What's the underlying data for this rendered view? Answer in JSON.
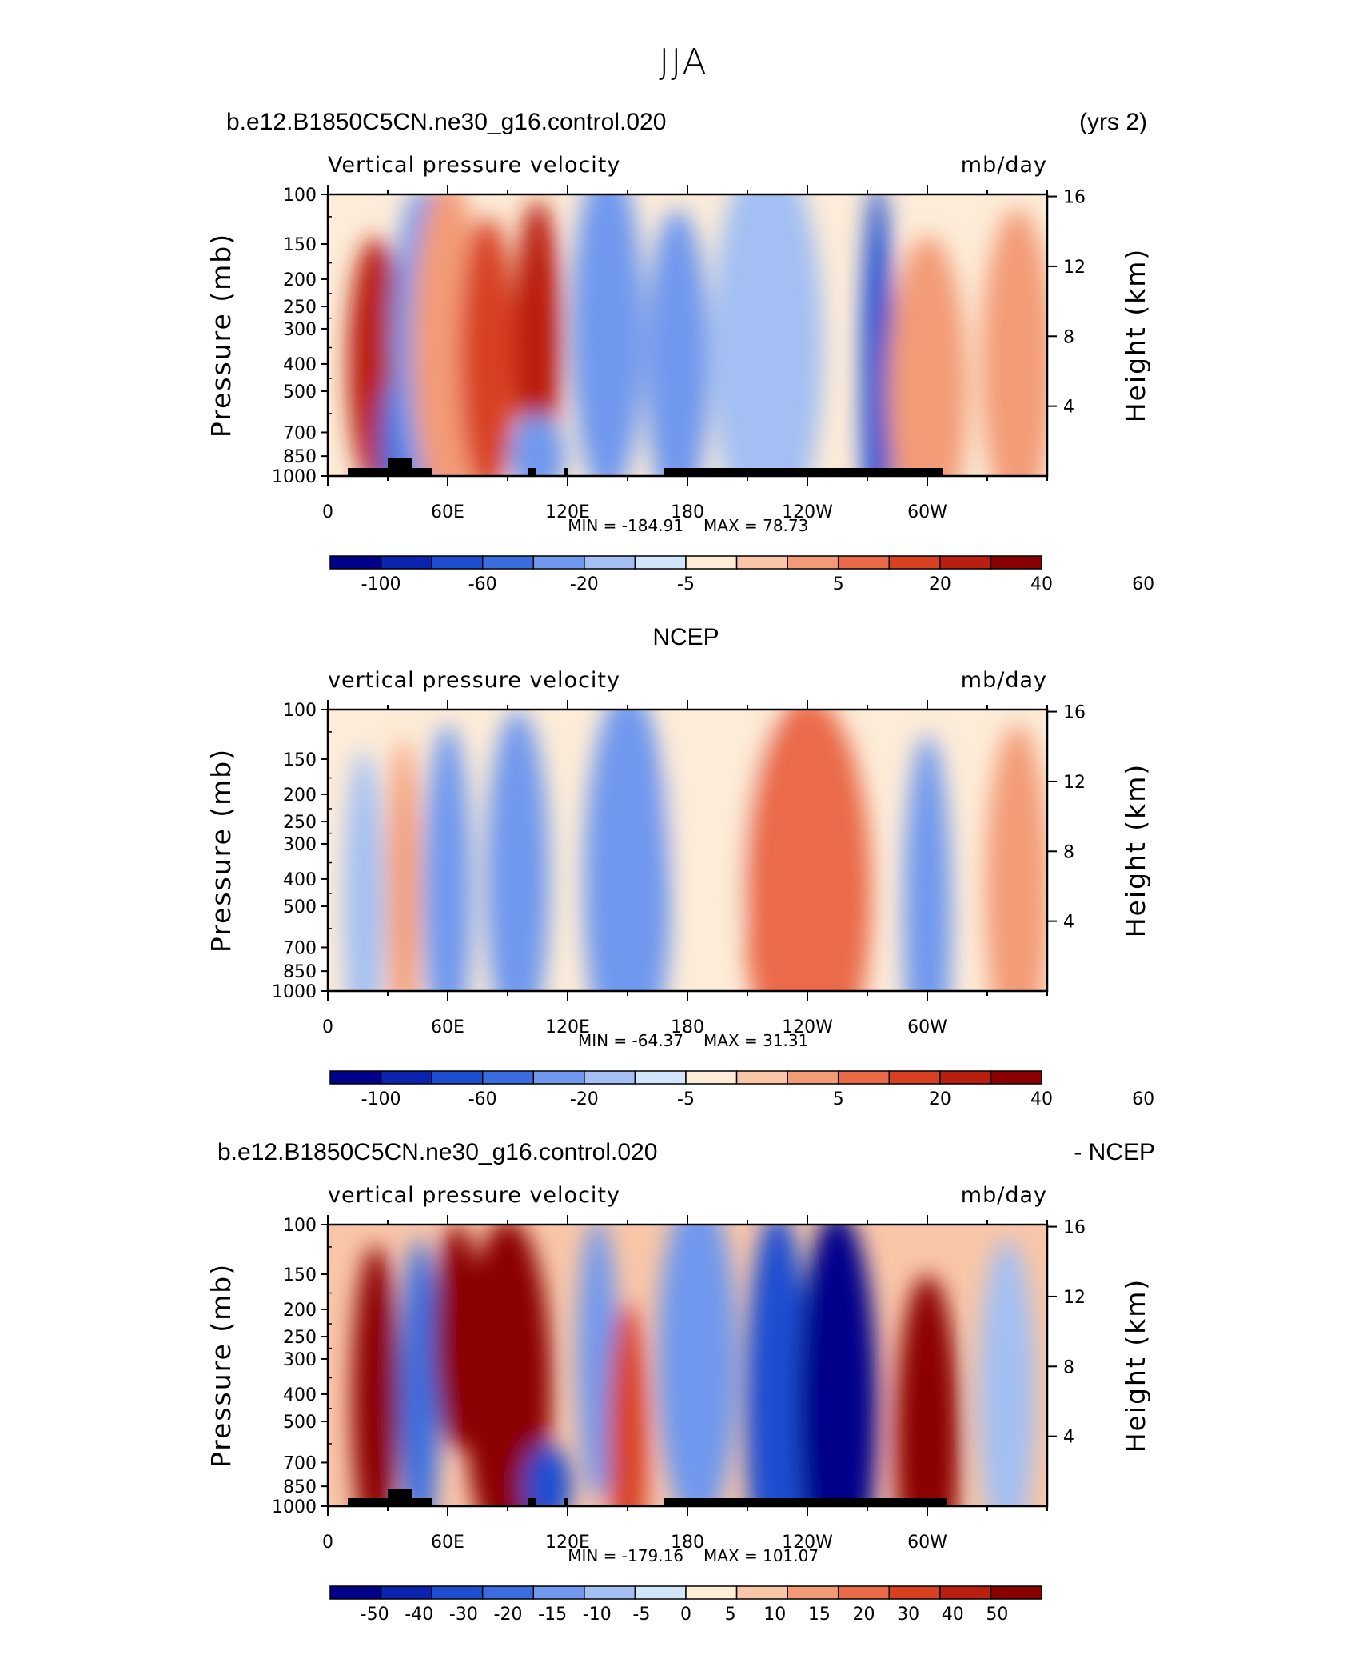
{
  "chart_data": {
    "type": "heatmap",
    "figure_title": "JJA",
    "x_ticks": [
      "0",
      "60E",
      "120E",
      "180",
      "120W",
      "60W"
    ],
    "x_tick_lon": [
      0,
      60,
      120,
      180,
      240,
      300
    ],
    "x_range": [
      0,
      360
    ],
    "y_ticks": [
      "100",
      "150",
      "200",
      "250",
      "300",
      "400",
      "500",
      "700",
      "850",
      "1000"
    ],
    "y_tick_values": [
      100,
      150,
      200,
      250,
      300,
      400,
      500,
      700,
      850,
      1000
    ],
    "y_range": [
      100,
      1000
    ],
    "y_label": "Pressure (mb)",
    "y2_ticks": [
      "16",
      "12",
      "8",
      "4"
    ],
    "y2_tick_values": [
      16,
      12,
      8,
      4
    ],
    "y2_label": "Height (km)",
    "colors": [
      "#00008b",
      "#0b24b0",
      "#1d4ed1",
      "#3a6ee0",
      "#6f98ee",
      "#a3bff3",
      "#d3e5fb",
      "#fdecd8",
      "#f9c6a8",
      "#f39b77",
      "#ea6a48",
      "#d84020",
      "#b91f0f",
      "#8b0000"
    ],
    "panels": [
      {
        "title_left": "b.e12.B1850C5CN.ne30_g16.control.020",
        "title_right": "(yrs 2)",
        "title_center": "",
        "subtitle_left": "Vertical pressure velocity",
        "subtitle_right": "mb/day",
        "min_label": "MIN = -184.91",
        "max_label": "MAX =  78.73",
        "colorbar_labels": [
          "-100",
          "-60",
          "-20",
          "-5",
          "5",
          "20",
          "40",
          "60"
        ],
        "colorbar_thresholds": [
          -120,
          -100,
          -80,
          -60,
          -40,
          -20,
          -10,
          -5,
          5,
          10,
          20,
          30,
          40,
          60,
          80
        ],
        "topography": [
          [
            10,
            20
          ],
          [
            20,
            30
          ],
          [
            30,
            42,
            "high"
          ],
          [
            42,
            52
          ],
          [
            100,
            104
          ],
          [
            118,
            120
          ],
          [
            168,
            308
          ]
        ],
        "features": [
          {
            "lon": 24,
            "p": 400,
            "w": 14,
            "h": 0.45,
            "v": 55
          },
          {
            "lon": 34,
            "p": 800,
            "w": 8,
            "h": 0.25,
            "v": -60
          },
          {
            "lon": 48,
            "p": 330,
            "w": 16,
            "h": 0.55,
            "v": -25
          },
          {
            "lon": 60,
            "p": 350,
            "w": 18,
            "h": 0.6,
            "v": 12
          },
          {
            "lon": 80,
            "p": 380,
            "w": 14,
            "h": 0.5,
            "v": 35
          },
          {
            "lon": 105,
            "p": 330,
            "w": 12,
            "h": 0.5,
            "v": 45
          },
          {
            "lon": 105,
            "p": 850,
            "w": 14,
            "h": 0.15,
            "v": -30
          },
          {
            "lon": 140,
            "p": 300,
            "w": 18,
            "h": 0.6,
            "v": -35
          },
          {
            "lon": 175,
            "p": 400,
            "w": 16,
            "h": 0.55,
            "v": -25
          },
          {
            "lon": 220,
            "p": 350,
            "w": 28,
            "h": 0.7,
            "v": -20
          },
          {
            "lon": 275,
            "p": 450,
            "w": 8,
            "h": 0.7,
            "v": -65
          },
          {
            "lon": 300,
            "p": 500,
            "w": 20,
            "h": 0.55,
            "v": 15
          },
          {
            "lon": 345,
            "p": 400,
            "w": 18,
            "h": 0.55,
            "v": 14
          }
        ]
      },
      {
        "title_left": "",
        "title_right": "",
        "title_center": "NCEP",
        "subtitle_left": "vertical pressure velocity",
        "subtitle_right": "mb/day",
        "min_label": "MIN = -64.37",
        "max_label": "MAX =  31.31",
        "colorbar_labels": [
          "-100",
          "-60",
          "-20",
          "-5",
          "5",
          "20",
          "40",
          "60"
        ],
        "colorbar_thresholds": [
          -120,
          -100,
          -80,
          -60,
          -40,
          -20,
          -10,
          -5,
          5,
          10,
          20,
          30,
          40,
          60,
          80
        ],
        "topography": [],
        "features": [
          {
            "lon": 18,
            "p": 500,
            "w": 10,
            "h": 0.55,
            "v": -15
          },
          {
            "lon": 38,
            "p": 450,
            "w": 8,
            "h": 0.55,
            "v": 12
          },
          {
            "lon": 60,
            "p": 450,
            "w": 12,
            "h": 0.6,
            "v": -30
          },
          {
            "lon": 95,
            "p": 400,
            "w": 16,
            "h": 0.6,
            "v": -30
          },
          {
            "lon": 150,
            "p": 420,
            "w": 22,
            "h": 0.7,
            "v": -40
          },
          {
            "lon": 200,
            "p": 200,
            "w": 30,
            "h": 0.5,
            "v": 4
          },
          {
            "lon": 240,
            "p": 450,
            "w": 32,
            "h": 0.7,
            "v": 25
          },
          {
            "lon": 300,
            "p": 550,
            "w": 12,
            "h": 0.65,
            "v": -35
          },
          {
            "lon": 345,
            "p": 450,
            "w": 16,
            "h": 0.6,
            "v": 18
          }
        ]
      },
      {
        "title_left": "b.e12.B1850C5CN.ne30_g16.control.020",
        "title_right": "- NCEP",
        "title_center": "",
        "subtitle_left": "vertical pressure velocity",
        "subtitle_right": "mb/day",
        "min_label": "MIN = -179.16",
        "max_label": "MAX = 101.07",
        "colorbar_labels": [
          "-50",
          "-40",
          "-30",
          "-20",
          "-15",
          "-10",
          "-5",
          "0",
          "5",
          "10",
          "15",
          "20",
          "30",
          "40",
          "50"
        ],
        "colorbar_thresholds": [
          -60,
          -50,
          -40,
          -30,
          -20,
          -15,
          -10,
          -5,
          0,
          5,
          10,
          15,
          20,
          30,
          40,
          50,
          60
        ],
        "topography": [
          [
            10,
            20
          ],
          [
            20,
            30
          ],
          [
            30,
            42,
            "high"
          ],
          [
            42,
            52
          ],
          [
            100,
            104
          ],
          [
            118,
            120
          ],
          [
            168,
            310
          ]
        ],
        "features": [
          {
            "lon": 24,
            "p": 420,
            "w": 12,
            "h": 0.55,
            "v": 50
          },
          {
            "lon": 46,
            "p": 400,
            "w": 10,
            "h": 0.55,
            "v": -25
          },
          {
            "lon": 65,
            "p": 250,
            "w": 12,
            "h": 0.4,
            "v": 30
          },
          {
            "lon": 90,
            "p": 380,
            "w": 22,
            "h": 0.6,
            "v": 55
          },
          {
            "lon": 110,
            "p": 850,
            "w": 12,
            "h": 0.15,
            "v": -40
          },
          {
            "lon": 135,
            "p": 300,
            "w": 10,
            "h": 0.5,
            "v": -20
          },
          {
            "lon": 150,
            "p": 600,
            "w": 10,
            "h": 0.5,
            "v": 18
          },
          {
            "lon": 185,
            "p": 300,
            "w": 20,
            "h": 0.6,
            "v": -20
          },
          {
            "lon": 225,
            "p": 450,
            "w": 16,
            "h": 0.7,
            "v": -40
          },
          {
            "lon": 255,
            "p": 450,
            "w": 20,
            "h": 0.7,
            "v": -60
          },
          {
            "lon": 300,
            "p": 600,
            "w": 16,
            "h": 0.6,
            "v": 30
          },
          {
            "lon": 340,
            "p": 400,
            "w": 14,
            "h": 0.55,
            "v": -12
          }
        ]
      }
    ]
  }
}
